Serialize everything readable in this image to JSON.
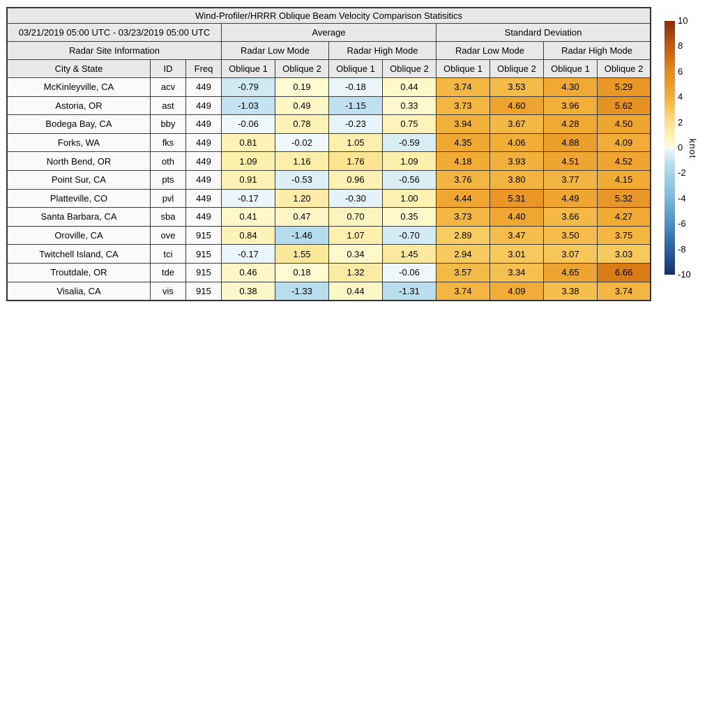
{
  "chart_data": {
    "type": "heatmap-table",
    "title": "Wind-Profiler/HRRR Oblique Beam Velocity Comparison Statisitics",
    "date_range": "03/21/2019 05:00 UTC - 03/23/2019 05:00 UTC",
    "header": {
      "site_info": "Radar Site Information",
      "average": "Average",
      "std_dev": "Standard Deviation",
      "mode_headers": [
        "Radar Low Mode",
        "Radar High Mode",
        "Radar Low Mode",
        "Radar High Mode"
      ],
      "col_headers": {
        "city": "City & State",
        "id": "ID",
        "freq": "Freq"
      },
      "oblique_headers": [
        "Oblique 1",
        "Oblique 2",
        "Oblique 1",
        "Oblique 2",
        "Oblique 1",
        "Oblique 2",
        "Oblique 1",
        "Oblique 2"
      ]
    },
    "rows": [
      {
        "city": "McKinleyville, CA",
        "id": "acv",
        "freq": "449",
        "values": [
          -0.79,
          0.19,
          -0.18,
          0.44,
          3.74,
          3.53,
          4.3,
          5.29
        ]
      },
      {
        "city": "Astoria, OR",
        "id": "ast",
        "freq": "449",
        "values": [
          -1.03,
          0.49,
          -1.15,
          0.33,
          3.73,
          4.6,
          3.96,
          5.62
        ]
      },
      {
        "city": "Bodega Bay, CA",
        "id": "bby",
        "freq": "449",
        "values": [
          -0.06,
          0.78,
          -0.23,
          0.75,
          3.94,
          3.67,
          4.28,
          4.5
        ]
      },
      {
        "city": "Forks, WA",
        "id": "fks",
        "freq": "449",
        "values": [
          0.81,
          -0.02,
          1.05,
          -0.59,
          4.35,
          4.06,
          4.88,
          4.09
        ]
      },
      {
        "city": "North Bend, OR",
        "id": "oth",
        "freq": "449",
        "values": [
          1.09,
          1.16,
          1.76,
          1.09,
          4.18,
          3.93,
          4.51,
          4.52
        ]
      },
      {
        "city": "Point Sur, CA",
        "id": "pts",
        "freq": "449",
        "values": [
          0.91,
          -0.53,
          0.96,
          -0.56,
          3.76,
          3.8,
          3.77,
          4.15
        ]
      },
      {
        "city": "Platteville, CO",
        "id": "pvl",
        "freq": "449",
        "values": [
          -0.17,
          1.2,
          -0.3,
          1.0,
          4.44,
          5.31,
          4.49,
          5.32
        ]
      },
      {
        "city": "Santa Barbara, CA",
        "id": "sba",
        "freq": "449",
        "values": [
          0.41,
          0.47,
          0.7,
          0.35,
          3.73,
          4.4,
          3.66,
          4.27
        ]
      },
      {
        "city": "Oroville, CA",
        "id": "ove",
        "freq": "915",
        "values": [
          0.84,
          -1.46,
          1.07,
          -0.7,
          2.89,
          3.47,
          3.5,
          3.75
        ]
      },
      {
        "city": "Twitchell Island, CA",
        "id": "tci",
        "freq": "915",
        "values": [
          -0.17,
          1.55,
          0.34,
          1.45,
          2.94,
          3.01,
          3.07,
          3.03
        ]
      },
      {
        "city": "Troutdale, OR",
        "id": "tde",
        "freq": "915",
        "values": [
          0.46,
          0.18,
          1.32,
          -0.06,
          3.57,
          3.34,
          4.65,
          6.66
        ]
      },
      {
        "city": "Visalia, CA",
        "id": "vis",
        "freq": "915",
        "values": [
          0.38,
          -1.33,
          0.44,
          -1.31,
          3.74,
          4.09,
          3.38,
          3.74
        ]
      }
    ],
    "colorbar": {
      "unit": "knot",
      "min": -10,
      "max": 10,
      "ticks": [
        10,
        8,
        6,
        4,
        2,
        0,
        -2,
        -4,
        -6,
        -8,
        -10
      ],
      "positive_stops": [
        [
          0,
          "#fffcda"
        ],
        [
          1,
          "#fdf0b0"
        ],
        [
          2,
          "#fbe189"
        ],
        [
          3,
          "#f7c95d"
        ],
        [
          4,
          "#f2af38"
        ],
        [
          5,
          "#eb9c2a"
        ],
        [
          6,
          "#e38a20"
        ],
        [
          7,
          "#d47313"
        ],
        [
          8,
          "#c25a0e"
        ],
        [
          9,
          "#a5440c"
        ],
        [
          10,
          "#8a2e0a"
        ]
      ],
      "negative_stops": [
        [
          -10,
          "#15306b"
        ],
        [
          -9,
          "#1f4788"
        ],
        [
          -8,
          "#2a5fa6"
        ],
        [
          -7,
          "#3a78b4"
        ],
        [
          -6,
          "#4a90c2"
        ],
        [
          -5,
          "#62a4ce"
        ],
        [
          -4,
          "#7ab8da"
        ],
        [
          -3,
          "#8fc6e1"
        ],
        [
          -2,
          "#a6d4e8"
        ],
        [
          -1.5,
          "#b2dbec"
        ],
        [
          -1,
          "#c5e4f0"
        ],
        [
          -0.5,
          "#ddeff6"
        ],
        [
          0,
          "#f0f8fb"
        ]
      ]
    }
  }
}
